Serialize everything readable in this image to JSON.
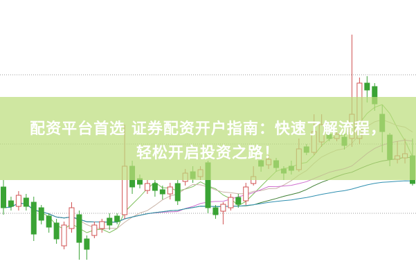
{
  "headline": {
    "line1": "配资平台首选 证券配资开户指南：快速了解流程，",
    "line2": "轻松开启投资之路！"
  },
  "colors": {
    "up": "#d05050",
    "down": "#3aa335",
    "banner": "#bcde7d",
    "grid": "#999999"
  },
  "chart_data": {
    "type": "candlestick",
    "title": "",
    "xlabel": "",
    "ylabel": "",
    "ylim": [
      0,
      100
    ],
    "grid": "dotted horizontal",
    "fields": [
      "open",
      "high",
      "low",
      "close"
    ],
    "candles": [
      [
        32.5,
        35,
        22.5,
        25
      ],
      [
        27.5,
        29,
        24,
        25.5
      ],
      [
        25.5,
        31,
        24,
        29.5
      ],
      [
        28.5,
        30,
        24,
        25.5
      ],
      [
        27,
        29,
        13,
        15.5
      ],
      [
        25,
        26,
        19,
        20.5
      ],
      [
        22,
        23,
        16,
        18
      ],
      [
        19.5,
        21,
        12,
        13.75
      ],
      [
        11.25,
        20,
        10,
        18.75
      ],
      [
        17.5,
        27,
        16,
        25
      ],
      [
        22.5,
        24,
        6.25,
        12.5
      ],
      [
        13.75,
        15,
        6.25,
        10
      ],
      [
        15,
        20,
        14,
        18.75
      ],
      [
        17.5,
        21,
        16,
        20
      ],
      [
        21.25,
        23,
        17,
        18.75
      ],
      [
        22,
        23,
        19,
        20
      ],
      [
        22.5,
        55,
        21,
        40
      ],
      [
        40,
        42,
        30,
        32.5
      ],
      [
        35.5,
        37,
        32,
        33.5
      ],
      [
        31.25,
        35,
        30,
        33.75
      ],
      [
        33.75,
        35,
        29,
        31.25
      ],
      [
        31.5,
        33,
        28,
        30
      ],
      [
        30,
        34,
        28,
        32.5
      ],
      [
        33.75,
        35,
        26,
        27.5
      ],
      [
        34.5,
        39,
        33,
        37.5
      ],
      [
        38,
        40,
        34,
        35.5
      ],
      [
        36.25,
        40,
        35,
        38.75
      ],
      [
        41.25,
        42,
        23,
        25
      ],
      [
        25,
        26,
        21,
        22.5
      ],
      [
        23.75,
        27,
        19,
        26.25
      ],
      [
        25,
        30,
        24,
        28.75
      ],
      [
        28.75,
        30,
        25,
        26.25
      ],
      [
        27.5,
        34,
        26,
        32.5
      ],
      [
        33.75,
        40,
        33,
        36.25
      ],
      [
        42,
        44,
        38,
        40
      ],
      [
        40.5,
        44,
        39,
        42.5
      ],
      [
        42,
        43,
        38,
        39.5
      ],
      [
        39,
        40,
        35,
        37.5
      ],
      [
        40,
        42,
        37,
        38.5
      ],
      [
        38.75,
        50,
        38,
        46.25
      ],
      [
        47,
        48,
        44,
        45
      ],
      [
        45,
        58.75,
        44,
        52.5
      ],
      [
        48.75,
        58.75,
        47,
        55
      ],
      [
        51.5,
        53,
        49,
        50
      ],
      [
        50,
        53,
        49,
        51.5
      ],
      [
        50.5,
        52,
        46,
        47.5
      ],
      [
        50,
        87.5,
        47,
        58.75
      ],
      [
        50,
        72,
        48,
        70
      ],
      [
        70,
        72.5,
        63,
        67.5
      ],
      [
        68.75,
        70,
        60,
        62.5
      ],
      [
        58.75,
        62,
        45,
        52.5
      ],
      [
        51.25,
        52,
        40,
        42.5
      ],
      [
        42.5,
        49,
        41,
        43.75
      ],
      [
        43,
        50,
        41,
        44.5
      ],
      [
        43.75,
        50,
        33,
        33.75
      ]
    ],
    "moving_averages": [
      {
        "period": 5,
        "color": "#7cbf5a"
      },
      {
        "period": 10,
        "color": "#c9b3a6"
      },
      {
        "period": 20,
        "color": "#d070d0"
      },
      {
        "period": 30,
        "color": "#3e7f33"
      },
      {
        "period": 60,
        "color": "#2f8fb0"
      }
    ],
    "gridlines": [
      73,
      48,
      23
    ]
  }
}
